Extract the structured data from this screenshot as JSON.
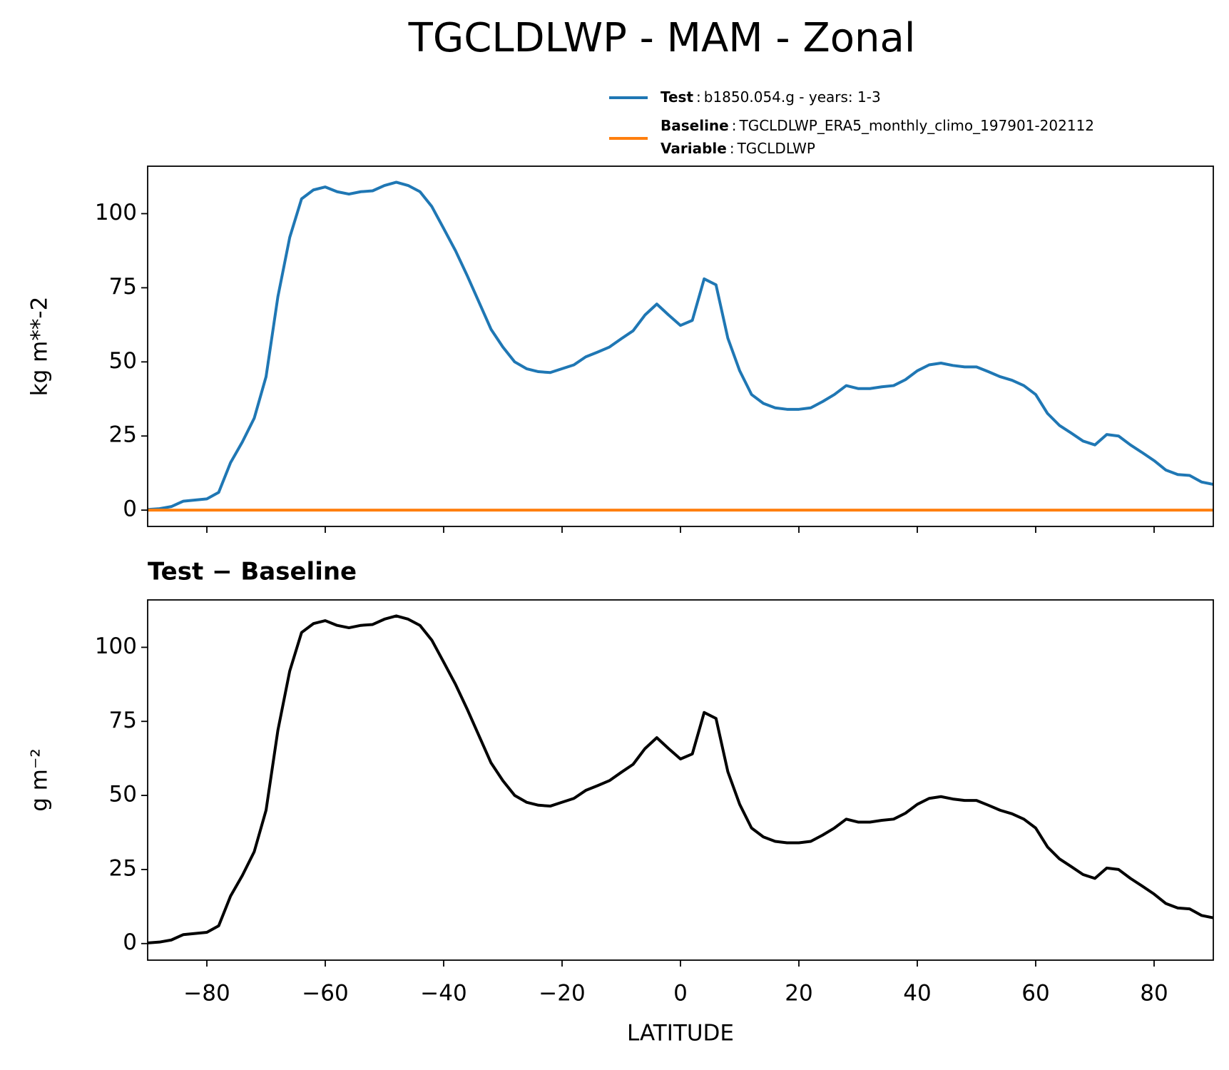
{
  "chart_data": [
    {
      "type": "line",
      "title": "TGCLDLWP - MAM - Zonal",
      "ylabel": "kg m**-2",
      "legend_separator": ":",
      "variable": {
        "label": "Variable",
        "value": "TGCLDLWP"
      },
      "x": [
        -90,
        -88,
        -86,
        -84,
        -82,
        -80,
        -78,
        -76,
        -74,
        -72,
        -70,
        -68,
        -66,
        -64,
        -62,
        -60,
        -58,
        -56,
        -54,
        -52,
        -50,
        -48,
        -46,
        -44,
        -42,
        -40,
        -38,
        -36,
        -34,
        -32,
        -30,
        -28,
        -26,
        -24,
        -22,
        -20,
        -18,
        -16,
        -14,
        -12,
        -10,
        -8,
        -6,
        -4,
        -2,
        0,
        2,
        4,
        6,
        8,
        10,
        12,
        14,
        16,
        18,
        20,
        22,
        24,
        26,
        28,
        30,
        32,
        34,
        36,
        38,
        40,
        42,
        44,
        46,
        48,
        50,
        52,
        54,
        56,
        58,
        60,
        62,
        64,
        66,
        68,
        70,
        72,
        74,
        76,
        78,
        80,
        82,
        84,
        86,
        88,
        90
      ],
      "series": [
        {
          "name": "Test",
          "description": "b1850.054.g - years: 1-3",
          "color": "#1f77b4",
          "values": [
            0.2,
            0.5,
            1.2,
            3,
            3.4,
            3.8,
            6,
            16,
            23,
            31,
            45,
            72,
            92,
            105,
            108,
            109,
            107.4,
            106.6,
            107.4,
            107.7,
            109.5,
            110.6,
            109.5,
            107.4,
            102.4,
            95,
            87.5,
            79,
            70,
            61,
            55,
            50,
            47.7,
            46.7,
            46.4,
            47.7,
            49,
            51.7,
            53.3,
            55,
            57.8,
            60.5,
            65.8,
            69.5,
            65.8,
            62.3,
            64,
            78,
            76,
            58,
            47,
            39,
            36,
            34.5,
            34,
            34,
            34.5,
            36.6,
            39,
            42,
            41,
            41,
            41.6,
            42,
            44,
            47,
            49,
            49.6,
            48.8,
            48.3,
            48.3,
            46.7,
            45,
            43.8,
            42,
            39,
            32.6,
            28.6,
            26,
            23.3,
            22,
            25.5,
            25,
            22,
            19.4,
            16.7,
            13.5,
            12,
            11.7,
            9.5,
            8.7
          ]
        },
        {
          "name": "Baseline",
          "description": "TGCLDLWP_ERA5_monthly_climo_197901-202112",
          "color": "#ff7f0e",
          "values": [
            0,
            0,
            0,
            0,
            0,
            0,
            0,
            0,
            0,
            0,
            0,
            0,
            0,
            0,
            0,
            0,
            0,
            0,
            0,
            0,
            0,
            0,
            0,
            0,
            0,
            0,
            0,
            0,
            0,
            0,
            0,
            0,
            0,
            0,
            0,
            0,
            0,
            0,
            0,
            0,
            0,
            0,
            0,
            0,
            0,
            0,
            0,
            0,
            0,
            0,
            0,
            0,
            0,
            0,
            0,
            0,
            0,
            0,
            0,
            0,
            0,
            0,
            0,
            0,
            0,
            0,
            0,
            0,
            0,
            0,
            0,
            0,
            0,
            0,
            0,
            0,
            0,
            0,
            0,
            0,
            0,
            0,
            0,
            0,
            0,
            0,
            0,
            0,
            0,
            0,
            0
          ]
        }
      ],
      "xlim": [
        -90,
        90
      ],
      "xticks": [
        -80,
        -60,
        -40,
        -20,
        0,
        20,
        40,
        60,
        80
      ],
      "show_xtick_labels": false,
      "ylim": [
        -5.5,
        116
      ],
      "yticks": [
        0,
        25,
        50,
        75,
        100
      ]
    },
    {
      "type": "line",
      "title": "Test − Baseline",
      "ylabel": "g m⁻²",
      "xlabel": "LATITUDE",
      "x": [
        -90,
        -88,
        -86,
        -84,
        -82,
        -80,
        -78,
        -76,
        -74,
        -72,
        -70,
        -68,
        -66,
        -64,
        -62,
        -60,
        -58,
        -56,
        -54,
        -52,
        -50,
        -48,
        -46,
        -44,
        -42,
        -40,
        -38,
        -36,
        -34,
        -32,
        -30,
        -28,
        -26,
        -24,
        -22,
        -20,
        -18,
        -16,
        -14,
        -12,
        -10,
        -8,
        -6,
        -4,
        -2,
        0,
        2,
        4,
        6,
        8,
        10,
        12,
        14,
        16,
        18,
        20,
        22,
        24,
        26,
        28,
        30,
        32,
        34,
        36,
        38,
        40,
        42,
        44,
        46,
        48,
        50,
        52,
        54,
        56,
        58,
        60,
        62,
        64,
        66,
        68,
        70,
        72,
        74,
        76,
        78,
        80,
        82,
        84,
        86,
        88,
        90
      ],
      "series": [
        {
          "color": "#000000",
          "values": [
            0.2,
            0.5,
            1.2,
            3,
            3.4,
            3.8,
            6,
            16,
            23,
            31,
            45,
            72,
            92,
            105,
            108,
            109,
            107.4,
            106.6,
            107.4,
            107.7,
            109.5,
            110.6,
            109.5,
            107.4,
            102.4,
            95,
            87.5,
            79,
            70,
            61,
            55,
            50,
            47.7,
            46.7,
            46.4,
            47.7,
            49,
            51.7,
            53.3,
            55,
            57.8,
            60.5,
            65.8,
            69.5,
            65.8,
            62.3,
            64,
            78,
            76,
            58,
            47,
            39,
            36,
            34.5,
            34,
            34,
            34.5,
            36.6,
            39,
            42,
            41,
            41,
            41.6,
            42,
            44,
            47,
            49,
            49.6,
            48.8,
            48.3,
            48.3,
            46.7,
            45,
            43.8,
            42,
            39,
            32.6,
            28.6,
            26,
            23.3,
            22,
            25.5,
            25,
            22,
            19.4,
            16.7,
            13.5,
            12,
            11.7,
            9.5,
            8.7
          ]
        }
      ],
      "xlim": [
        -90,
        90
      ],
      "xticks": [
        {
          "value": -80,
          "label": "−80"
        },
        {
          "value": -60,
          "label": "−60"
        },
        {
          "value": -40,
          "label": "−40"
        },
        {
          "value": -20,
          "label": "−20"
        },
        0,
        20,
        40,
        60,
        80
      ],
      "show_xtick_labels": true,
      "ylim": [
        -5.6,
        116
      ],
      "yticks": [
        0,
        25,
        50,
        75,
        100
      ]
    }
  ]
}
